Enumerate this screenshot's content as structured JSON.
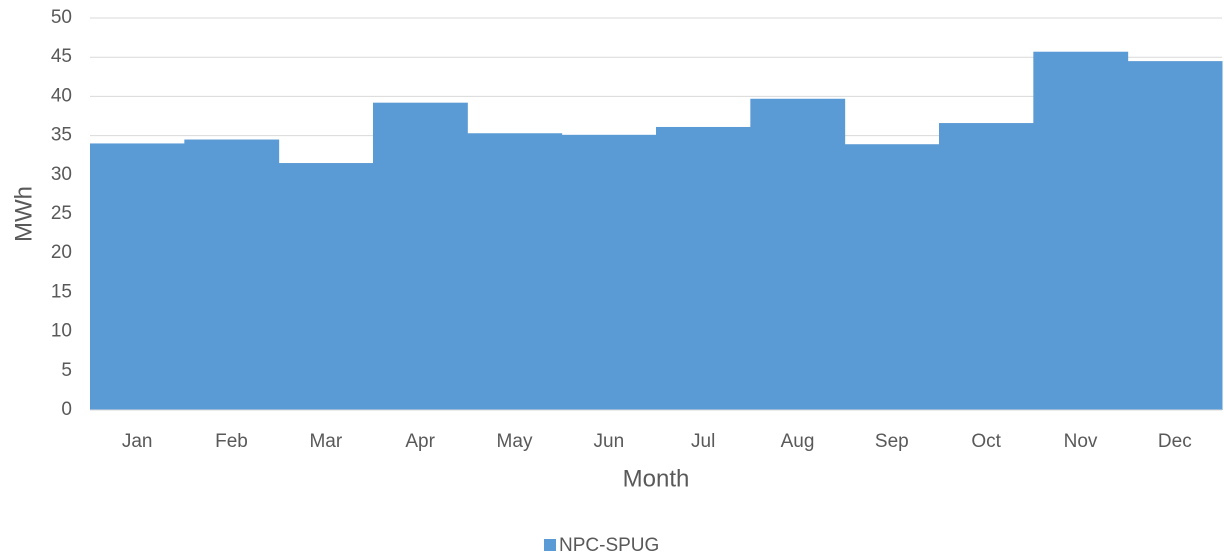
{
  "chart_data": {
    "type": "bar",
    "x_label": "Month",
    "y_label": "MWh",
    "categories": [
      "Jan",
      "Feb",
      "Mar",
      "Apr",
      "May",
      "Jun",
      "Jul",
      "Aug",
      "Sep",
      "Oct",
      "Nov",
      "Dec"
    ],
    "series": [
      {
        "name": "NPC-SPUG",
        "color": "#5b9bd5",
        "values": [
          34,
          34.5,
          31.5,
          39.2,
          35.3,
          35.1,
          36.1,
          39.7,
          33.9,
          36.6,
          45.7,
          44.5
        ]
      }
    ],
    "ylim": [
      0,
      50
    ],
    "yticks": [
      0,
      5,
      10,
      15,
      20,
      25,
      30,
      35,
      40,
      45,
      50
    ],
    "grid": true,
    "legend": "bottom"
  }
}
